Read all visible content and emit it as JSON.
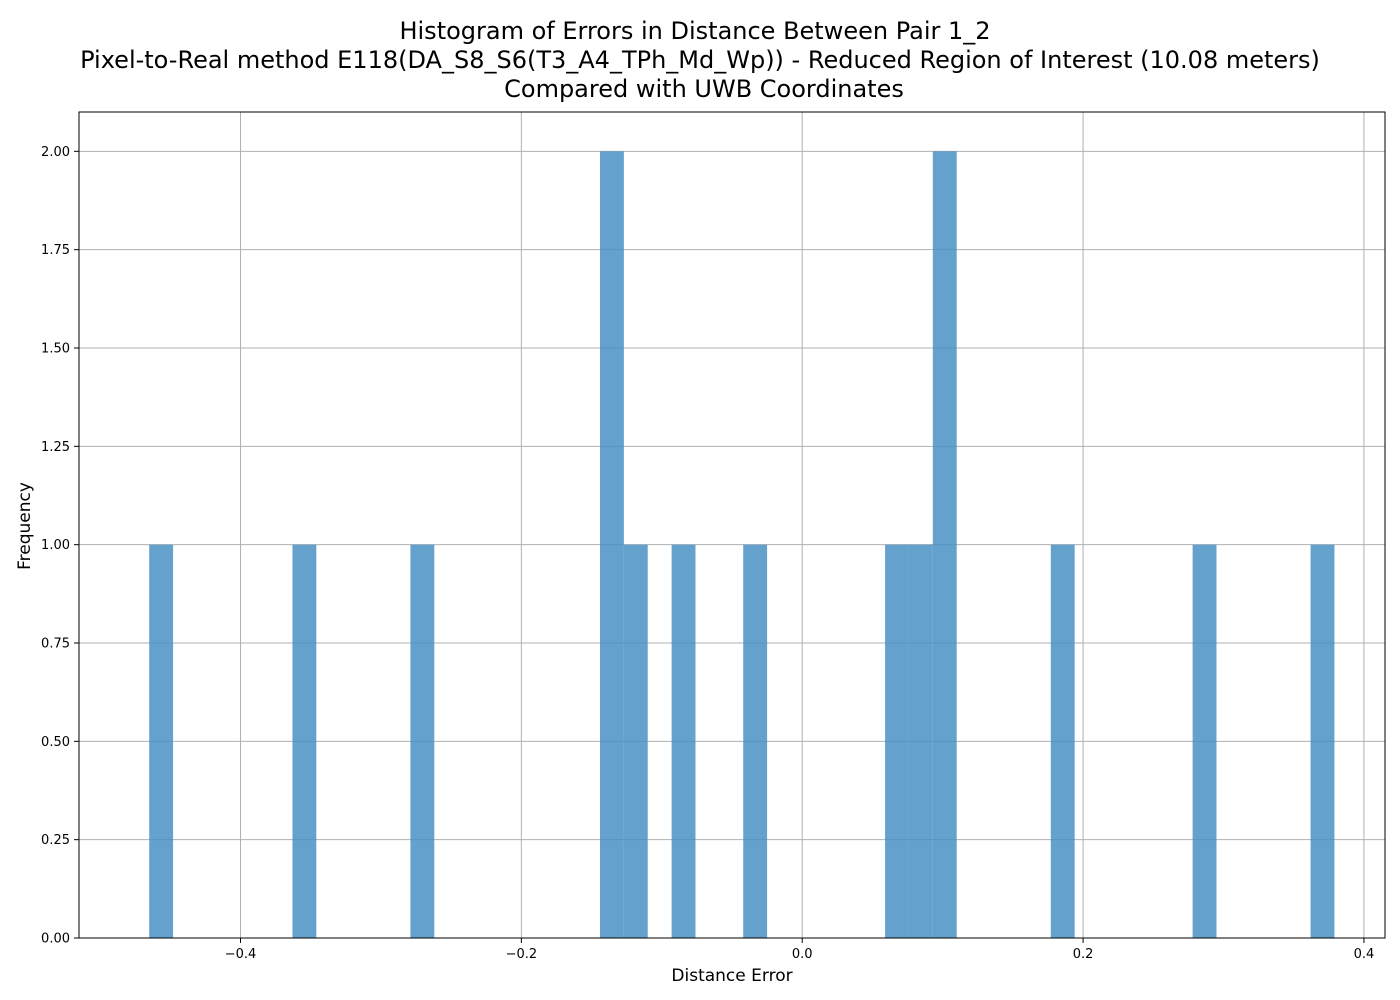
{
  "chart_data": {
    "type": "bar",
    "title_lines": [
      "Histogram of Errors in Distance Between Pair 1_2",
      "Pixel-to-Real method E118(DA_S8_S6(T3_A4_TPh_Md_Wp)) - Reduced Region of Interest (10.08 meters)",
      "Compared with UWB Coordinates"
    ],
    "xlabel": "Distance Error",
    "ylabel": "Frequency",
    "xlim": [
      -0.515,
      0.415
    ],
    "ylim": [
      0,
      2.1
    ],
    "x_ticks": [
      -0.4,
      -0.2,
      0.0,
      0.2,
      0.4
    ],
    "x_tick_labels": [
      "−0.4",
      "−0.2",
      "0.0",
      "0.2",
      "0.4"
    ],
    "y_ticks": [
      0,
      0.25,
      0.5,
      0.75,
      1.0,
      1.25,
      1.5,
      1.75,
      2.0
    ],
    "y_tick_labels": [
      "0.00",
      "0.25",
      "0.50",
      "0.75",
      "1.00",
      "1.25",
      "1.50",
      "1.75",
      "2.00"
    ],
    "grid": true,
    "bar_color": "#4a90c4",
    "bar_opacity": 0.85,
    "bins": [
      {
        "x0": -0.465,
        "x1": -0.448,
        "count": 1
      },
      {
        "x0": -0.363,
        "x1": -0.346,
        "count": 1
      },
      {
        "x0": -0.279,
        "x1": -0.262,
        "count": 1
      },
      {
        "x0": -0.144,
        "x1": -0.127,
        "count": 2
      },
      {
        "x0": -0.127,
        "x1": -0.11,
        "count": 1
      },
      {
        "x0": -0.093,
        "x1": -0.076,
        "count": 1
      },
      {
        "x0": -0.042,
        "x1": -0.025,
        "count": 1
      },
      {
        "x0": 0.059,
        "x1": 0.076,
        "count": 1
      },
      {
        "x0": 0.076,
        "x1": 0.093,
        "count": 1
      },
      {
        "x0": 0.093,
        "x1": 0.11,
        "count": 2
      },
      {
        "x0": 0.177,
        "x1": 0.194,
        "count": 1
      },
      {
        "x0": 0.278,
        "x1": 0.295,
        "count": 1
      },
      {
        "x0": 0.362,
        "x1": 0.379,
        "count": 1
      }
    ]
  }
}
